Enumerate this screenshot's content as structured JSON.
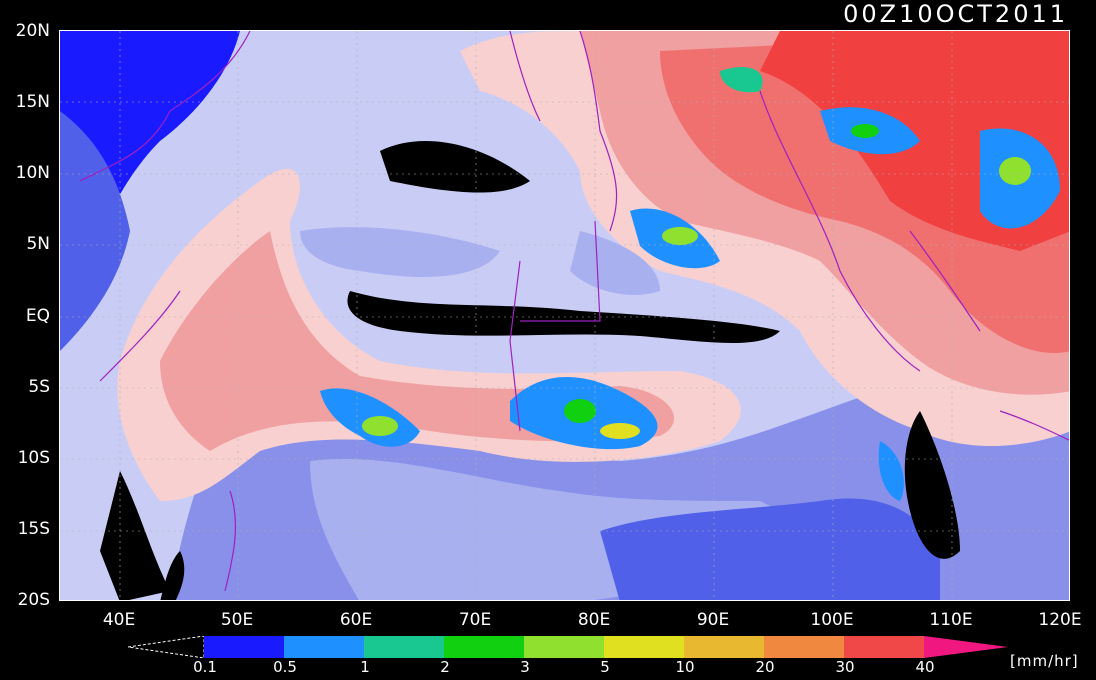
{
  "title": "00Z10OCT2011",
  "lat_labels": [
    "20N",
    "15N",
    "10N",
    "5N",
    "EQ",
    "5S",
    "10S",
    "15S",
    "20S"
  ],
  "lon_labels": [
    "40E",
    "50E",
    "60E",
    "70E",
    "80E",
    "90E",
    "100E",
    "110E",
    "120E"
  ],
  "colorbar": {
    "labels": [
      "0.1",
      "0.5",
      "1",
      "2",
      "3",
      "5",
      "10",
      "20",
      "30",
      "40"
    ],
    "colors": [
      "#1a1aff",
      "#1e90ff",
      "#18c890",
      "#10d010",
      "#90e030",
      "#e0e020",
      "#e8b830",
      "#f08840",
      "#f04848",
      "#f01880"
    ],
    "units": "[mm/hr]"
  },
  "palette": {
    "no_rain": "#c9cdf5",
    "low_light": "#a8b0f0",
    "low_mid": "#8890ea",
    "low_dark": "#5060e8",
    "deep_blue": "#1a1aff",
    "missing": "#000000",
    "pink_light": "#f8d0d0",
    "pink_mid": "#f0a0a0",
    "red_mid": "#f07070",
    "red_dark": "#f04040",
    "coast": "#a020c0"
  }
}
